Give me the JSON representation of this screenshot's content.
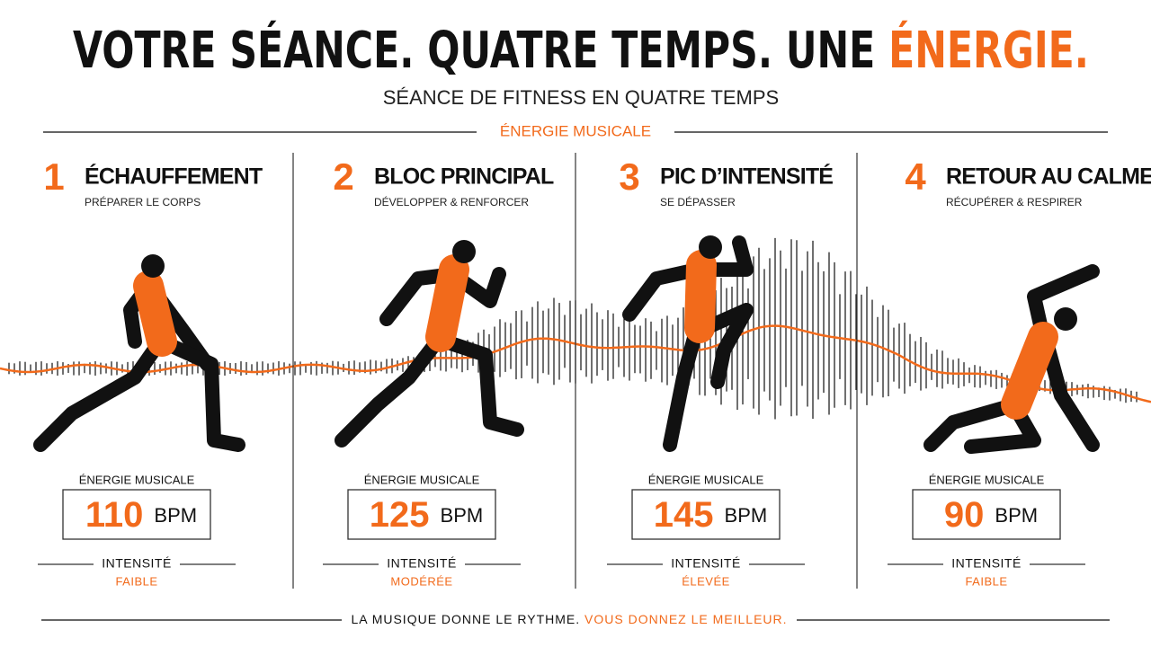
{
  "header": {
    "title": "VOTRE SÉANCE. QUATRE TEMPS. UNE",
    "title_highlight": "ÉNERGIE.",
    "subtitle": "SÉANCE DE FITNESS EN QUATRE TEMPS",
    "section_label": "ÉNERGIE MUSICALE"
  },
  "phases": [
    {
      "number": 1,
      "title": "ÉCHAUFFEMENT",
      "subtitle": "PRÉPARER LE CORPS",
      "energy_label": "ÉNERGIE MUSICALE",
      "bpm": 110,
      "unit": "BPM",
      "intensity_label": "INTENSITÉ",
      "intensity": "FAIBLE"
    },
    {
      "number": 2,
      "title": "BLOC PRINCIPAL",
      "subtitle": "DÉVELOPPER & RENFORCER",
      "energy_label": "ÉNERGIE MUSICALE",
      "bpm": 125,
      "unit": "BPM",
      "intensity_label": "INTENSITÉ",
      "intensity": "MODÉRÉE"
    },
    {
      "number": 3,
      "title": "PIC D’INTENSITÉ",
      "subtitle": "SE DÉPASSER",
      "energy_label": "ÉNERGIE MUSICALE",
      "bpm": 145,
      "unit": "BPM",
      "intensity_label": "INTENSITÉ",
      "intensity": "ÉLEVÉE"
    },
    {
      "number": 4,
      "title": "RETOUR AU CALME",
      "subtitle": "RÉCUPÉRER & RESPIRER",
      "energy_label": "ÉNERGIE MUSICALE",
      "bpm": 90,
      "unit": "BPM",
      "intensity_label": "INTENSITÉ",
      "intensity": "FAIBLE"
    }
  ],
  "footer": {
    "text": "LA MUSIQUE DONNE LE RYTHME.",
    "highlight": "VOUS DONNEZ LE MEILLEUR."
  }
}
